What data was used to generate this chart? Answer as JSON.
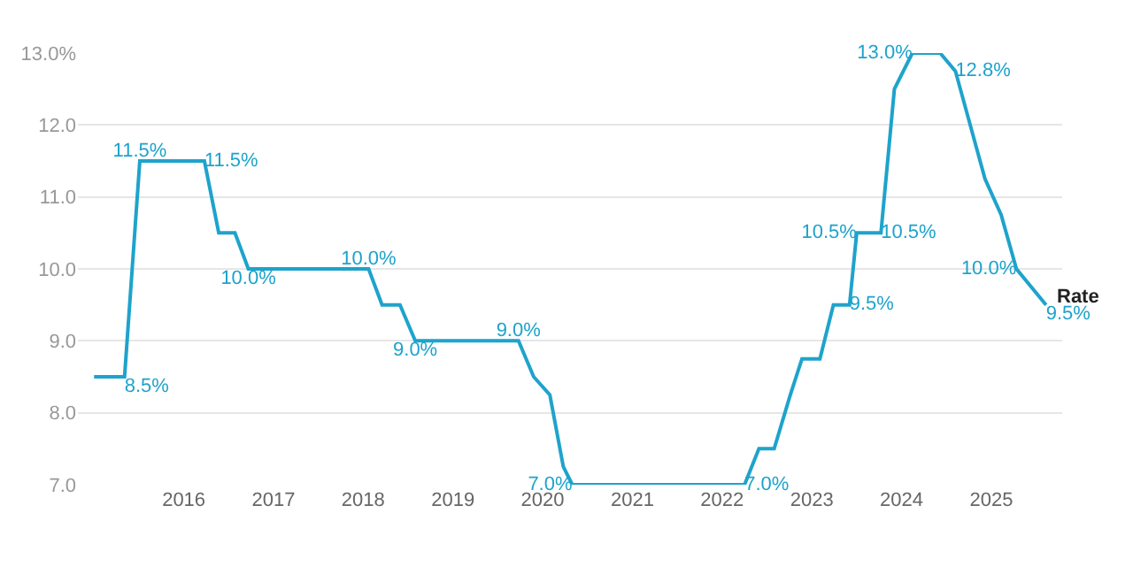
{
  "chart_data": {
    "type": "line",
    "xlim": [
      2014.82,
      2025.79
    ],
    "xticks": [
      2016,
      2017,
      2018,
      2019,
      2020,
      2021,
      2022,
      2023,
      2024,
      2025
    ],
    "ylim": [
      7,
      13
    ],
    "yticks": [
      {
        "value": 7,
        "label": "7.0"
      },
      {
        "value": 8,
        "label": "8.0"
      },
      {
        "value": 9,
        "label": "9.0"
      },
      {
        "value": 10,
        "label": "10.0"
      },
      {
        "value": 11,
        "label": "11.0"
      },
      {
        "value": 12,
        "label": "12.0"
      },
      {
        "value": 13,
        "label": "13.0%"
      }
    ],
    "grid": "y",
    "legend": false,
    "marker": "none",
    "line_style": "solid",
    "series": [
      {
        "name": "Rate",
        "color": "#1ea3cc",
        "x": [
          2015.0,
          2015.34,
          2015.51,
          2016.23,
          2016.39,
          2016.57,
          2016.72,
          2018.06,
          2018.21,
          2018.41,
          2018.58,
          2019.73,
          2019.9,
          2020.08,
          2020.23,
          2020.33,
          2022.25,
          2022.41,
          2022.58,
          2022.76,
          2022.89,
          2023.09,
          2023.24,
          2023.42,
          2023.5,
          2023.77,
          2023.92,
          2024.12,
          2024.43,
          2024.6,
          2024.93,
          2025.11,
          2025.28,
          2025.61
        ],
        "values": [
          8.5,
          8.5,
          11.5,
          11.5,
          10.5,
          10.5,
          10.0,
          10.0,
          9.5,
          9.5,
          9.0,
          9.0,
          8.5,
          8.25,
          7.25,
          7.0,
          7.0,
          7.5,
          7.5,
          8.25,
          8.75,
          8.75,
          9.5,
          9.5,
          10.5,
          10.5,
          12.5,
          13.0,
          13.0,
          12.75,
          11.25,
          10.75,
          10.0,
          9.5
        ],
        "value_labels": [
          null,
          "8.5%",
          "11.5%",
          "11.5%",
          null,
          null,
          "10.0%",
          "10.0%",
          null,
          null,
          "9.0%",
          "9.0%",
          null,
          null,
          null,
          "7.0%",
          "7.0%",
          null,
          null,
          null,
          null,
          null,
          null,
          "9.5%",
          "10.5%",
          "10.5%",
          null,
          "13.0%",
          null,
          "12.8%",
          null,
          null,
          "10.0%",
          "9.5%"
        ]
      }
    ]
  }
}
